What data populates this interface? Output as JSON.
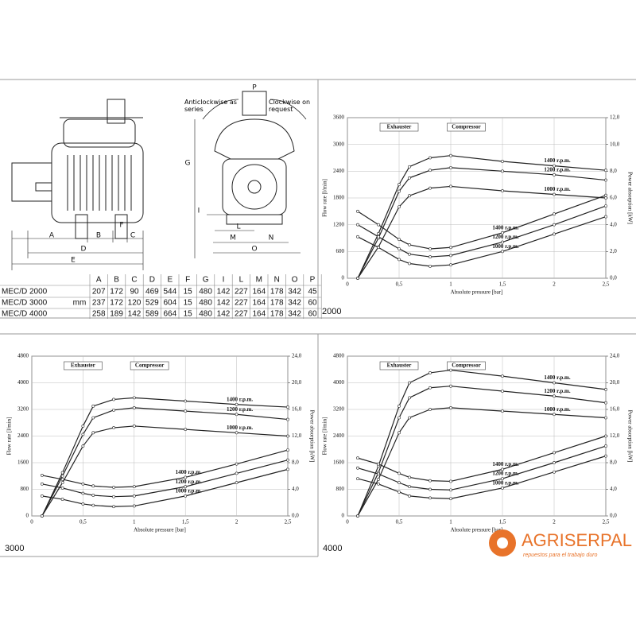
{
  "drawing": {
    "labels": {
      "A": "A",
      "B": "B",
      "C": "C",
      "D": "D",
      "E": "E",
      "F": "F",
      "G": "G",
      "I": "I",
      "L": "L",
      "M": "M",
      "N": "N",
      "O": "O",
      "P": "P"
    },
    "rotation_left": "Anticlockwise as series",
    "rotation_right": "Clockwise on request"
  },
  "table": {
    "unit": "mm",
    "header": [
      "A",
      "B",
      "C",
      "D",
      "E",
      "F",
      "G",
      "I",
      "L",
      "M",
      "N",
      "O",
      "P"
    ],
    "rows": [
      {
        "model": "MEC/D 2000",
        "values": [
          207,
          172,
          90,
          469,
          544,
          15,
          480,
          142,
          227,
          164,
          178,
          342,
          45
        ]
      },
      {
        "model": "MEC/D 3000",
        "values": [
          237,
          172,
          120,
          529,
          604,
          15,
          480,
          142,
          227,
          164,
          178,
          342,
          60
        ]
      },
      {
        "model": "MEC/D 4000",
        "values": [
          258,
          189,
          142,
          589,
          664,
          15,
          480,
          142,
          227,
          164,
          178,
          342,
          60
        ]
      }
    ]
  },
  "chart_data": [
    {
      "type": "line",
      "label": "2000",
      "xlabel": "Absolute pressure [bar]",
      "ylabel": "Flow rate [l/min]",
      "y2label": "Power absorption [kW]",
      "annotations": [
        "Exhauster",
        "Compressor"
      ],
      "x": [
        0.1,
        0.3,
        0.5,
        0.6,
        0.8,
        1.0,
        1.5,
        2.0,
        2.5
      ],
      "xlim": [
        0,
        2.5
      ],
      "xticks": [
        0,
        {
          "value": 0.5,
          "label": "0,5"
        },
        1,
        {
          "value": 1.5,
          "label": "1,5"
        },
        2,
        {
          "value": 2.5,
          "label": "2,5"
        }
      ],
      "ylim": [
        0,
        3600
      ],
      "yticks": [
        0,
        600,
        1200,
        1800,
        2400,
        3000,
        3600
      ],
      "y2lim": [
        0,
        12
      ],
      "y2ticks": [
        {
          "value": 0,
          "label": "0,0"
        },
        {
          "value": 2,
          "label": "2,0"
        },
        {
          "value": 4,
          "label": "4,0"
        },
        {
          "value": 6,
          "label": "6,0"
        },
        {
          "value": 8,
          "label": "8,0"
        },
        {
          "value": 10,
          "label": "10,0"
        },
        {
          "value": 12,
          "label": "12,0"
        }
      ],
      "grid": true,
      "series": [
        {
          "name": "1400 r.p.m.",
          "color": "#222222",
          "values": [
            0,
            1000,
            2100,
            2500,
            2700,
            2750,
            2620,
            2520,
            2420
          ]
        },
        {
          "name": "1200 r.p.m.",
          "color": "#222222",
          "values": [
            0,
            900,
            1950,
            2250,
            2420,
            2480,
            2400,
            2320,
            2200
          ]
        },
        {
          "name": "1000 r.p.m.",
          "color": "#222222",
          "values": [
            0,
            700,
            1600,
            1850,
            2020,
            2060,
            1960,
            1880,
            1800
          ]
        },
        {
          "name": "1400 r.p.m.",
          "color": "#222222",
          "axis": "y2",
          "values": [
            5.0,
            4.0,
            2.9,
            2.5,
            2.2,
            2.3,
            3.4,
            4.8,
            6.2
          ]
        },
        {
          "name": "1200 r.p.m.",
          "color": "#222222",
          "axis": "y2",
          "values": [
            4.0,
            3.1,
            2.2,
            1.8,
            1.6,
            1.7,
            2.7,
            4.0,
            5.4
          ]
        },
        {
          "name": "1000 r.p.m.",
          "color": "#222222",
          "axis": "y2",
          "values": [
            3.1,
            2.3,
            1.4,
            1.1,
            0.9,
            1.0,
            2.0,
            3.3,
            4.6
          ]
        }
      ]
    },
    {
      "type": "line",
      "label": "3000",
      "xlabel": "Absolute pressure [bar]",
      "ylabel": "Flow rate [l/min]",
      "y2label": "Power absorption [kW]",
      "annotations": [
        "Exhauster",
        "Compressor"
      ],
      "x": [
        0.1,
        0.3,
        0.5,
        0.6,
        0.8,
        1.0,
        1.5,
        2.0,
        2.5
      ],
      "xlim": [
        0,
        2.5
      ],
      "xticks": [
        0,
        {
          "value": 0.5,
          "label": "0,5"
        },
        1,
        {
          "value": 1.5,
          "label": "1,5"
        },
        2,
        {
          "value": 2.5,
          "label": "2,5"
        }
      ],
      "ylim": [
        0,
        4800
      ],
      "yticks": [
        0,
        800,
        1600,
        2400,
        3200,
        4000,
        4800
      ],
      "y2lim": [
        0,
        24
      ],
      "y2ticks": [
        {
          "value": 0,
          "label": "0,0"
        },
        {
          "value": 4,
          "label": "4,0"
        },
        {
          "value": 8,
          "label": "8,0"
        },
        {
          "value": 12,
          "label": "12,0"
        },
        {
          "value": 16,
          "label": "16,0"
        },
        {
          "value": 20,
          "label": "20,0"
        },
        {
          "value": 24,
          "label": "24,0"
        }
      ],
      "grid": true,
      "series": [
        {
          "name": "1400 r.p.m.",
          "color": "#222222",
          "values": [
            0,
            1300,
            2700,
            3300,
            3500,
            3550,
            3450,
            3350,
            3270
          ]
        },
        {
          "name": "1200 r.p.m.",
          "color": "#222222",
          "values": [
            0,
            1200,
            2450,
            2950,
            3180,
            3250,
            3150,
            3050,
            2900
          ]
        },
        {
          "name": "1000 r.p.m.",
          "color": "#222222",
          "values": [
            0,
            1000,
            2100,
            2500,
            2650,
            2700,
            2600,
            2500,
            2400
          ]
        },
        {
          "name": "1400 r.p.m.",
          "color": "#222222",
          "axis": "y2",
          "values": [
            6.1,
            5.5,
            4.8,
            4.5,
            4.3,
            4.4,
            5.8,
            7.8,
            9.9
          ]
        },
        {
          "name": "1200 r.p.m.",
          "color": "#222222",
          "axis": "y2",
          "values": [
            4.8,
            4.2,
            3.4,
            3.1,
            2.9,
            3.0,
            4.4,
            6.4,
            8.4
          ]
        },
        {
          "name": "1000 r.p.m.",
          "color": "#222222",
          "axis": "y2",
          "values": [
            3.0,
            2.5,
            1.8,
            1.6,
            1.4,
            1.5,
            3.0,
            5.0,
            7.0
          ]
        }
      ]
    },
    {
      "type": "line",
      "label": "4000",
      "xlabel": "Absolute pressure [bar]",
      "ylabel": "Flow rate [l/min]",
      "y2label": "Power absorption [kW]",
      "annotations": [
        "Exhauster",
        "Compressor"
      ],
      "x": [
        0.1,
        0.3,
        0.5,
        0.6,
        0.8,
        1.0,
        1.5,
        2.0,
        2.5
      ],
      "xlim": [
        0,
        2.5
      ],
      "xticks": [
        0,
        {
          "value": 0.5,
          "label": "0,5"
        },
        1,
        {
          "value": 1.5,
          "label": "1,5"
        },
        2,
        {
          "value": 2.5,
          "label": "2,5"
        }
      ],
      "ylim": [
        0,
        4800
      ],
      "yticks": [
        0,
        800,
        1600,
        2400,
        3200,
        4000,
        4800
      ],
      "y2lim": [
        0,
        24
      ],
      "y2ticks": [
        {
          "value": 0,
          "label": "0,0"
        },
        {
          "value": 4,
          "label": "4,0"
        },
        {
          "value": 8,
          "label": "8,0"
        },
        {
          "value": 12,
          "label": "12,0"
        },
        {
          "value": 16,
          "label": "16,0"
        },
        {
          "value": 20,
          "label": "20,0"
        },
        {
          "value": 24,
          "label": "24,0"
        }
      ],
      "grid": true,
      "series": [
        {
          "name": "1400 r.p.m.",
          "color": "#222222",
          "values": [
            0,
            1500,
            3300,
            4000,
            4300,
            4380,
            4200,
            4000,
            3800
          ]
        },
        {
          "name": "1200 r.p.m.",
          "color": "#222222",
          "values": [
            0,
            1300,
            2950,
            3550,
            3850,
            3900,
            3750,
            3600,
            3400
          ]
        },
        {
          "name": "1000 r.p.m.",
          "color": "#222222",
          "values": [
            0,
            1100,
            2500,
            2950,
            3200,
            3250,
            3150,
            3050,
            2950
          ]
        },
        {
          "name": "1400 r.p.m.",
          "color": "#222222",
          "axis": "y2",
          "values": [
            8.7,
            7.8,
            6.4,
            5.8,
            5.3,
            5.2,
            7.0,
            9.5,
            12.0
          ]
        },
        {
          "name": "1200 r.p.m.",
          "color": "#222222",
          "axis": "y2",
          "values": [
            7.2,
            6.3,
            5.0,
            4.4,
            4.0,
            3.9,
            5.6,
            8.0,
            10.5
          ]
        },
        {
          "name": "1000 r.p.m.",
          "color": "#222222",
          "axis": "y2",
          "values": [
            5.6,
            4.8,
            3.6,
            3.0,
            2.7,
            2.6,
            4.2,
            6.6,
            9.0
          ]
        }
      ]
    }
  ],
  "logo": {
    "name": "AGRISERPAL",
    "tagline": "repuestos para el trabajo duro"
  }
}
